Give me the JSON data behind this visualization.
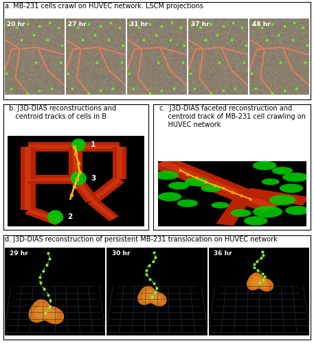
{
  "fig_width": 4.57,
  "fig_height": 5.0,
  "dpi": 100,
  "background_color": "#ffffff",
  "border_color": "#000000",
  "panel_a": {
    "label": "a. MB-231 cells crawl on HUVEC network. LSCM projections",
    "label_fontsize": 7.0,
    "timepoints": [
      "20 hr",
      "27 hr",
      "31 hr",
      "37 hr",
      "48 hr"
    ],
    "tp_fontsize": 6.5
  },
  "panel_b": {
    "label": "b. J3D-DIAS reconstructions and\n   centroid tracks of cells in B",
    "label_fontsize": 7.0
  },
  "panel_c": {
    "label": "c.  J3D-DIAS faceted reconstruction and\n    centroid track of MB-231 cell crawling on\n    HUVEC network",
    "label_fontsize": 7.0
  },
  "panel_d": {
    "label": "d. J3D-DIAS reconstruction of persistent MB-231 translocation on HUVEC network",
    "label_fontsize": 7.0,
    "timepoints": [
      "29 hr",
      "30 hr",
      "36 hr"
    ],
    "tp_fontsize": 6.5
  }
}
